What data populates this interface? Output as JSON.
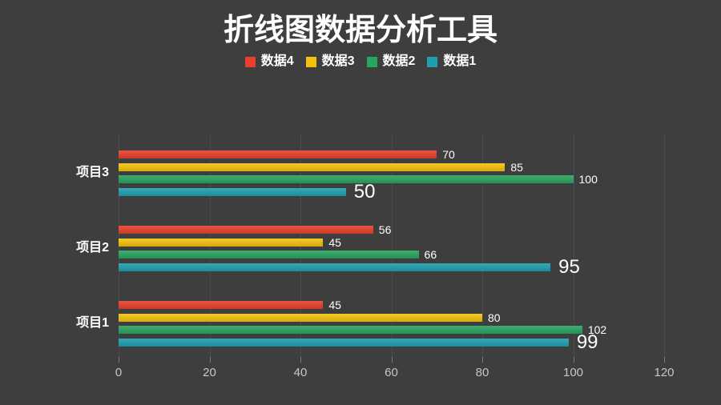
{
  "title": "折线图数据分析工具",
  "colors": {
    "background": "#3e3e3e",
    "gridline": "#4b4b4b",
    "tick_label": "#c6c6c6",
    "text": "#ffffff"
  },
  "chart_data": {
    "type": "bar",
    "orientation": "horizontal",
    "title": "折线图数据分析工具",
    "categories": [
      "项目3",
      "项目2",
      "项目1"
    ],
    "series": [
      {
        "name": "数据4",
        "color": "#e8402c",
        "values": [
          70,
          56,
          45
        ],
        "label_size": "small"
      },
      {
        "name": "数据3",
        "color": "#f2c20e",
        "values": [
          85,
          45,
          80
        ],
        "label_size": "small"
      },
      {
        "name": "数据2",
        "color": "#28a55f",
        "values": [
          100,
          66,
          102
        ],
        "label_size": "small"
      },
      {
        "name": "数据1",
        "color": "#1f9faf",
        "values": [
          50,
          95,
          99
        ],
        "label_size": "large"
      }
    ],
    "xlim": [
      0,
      120
    ],
    "xticks": [
      0,
      20,
      40,
      60,
      80,
      100,
      120
    ],
    "grid": true,
    "legend_position": "top",
    "data_labels": true
  }
}
